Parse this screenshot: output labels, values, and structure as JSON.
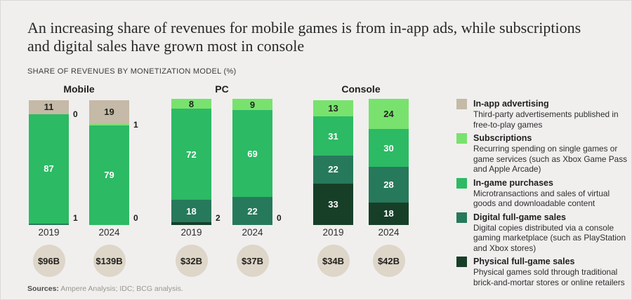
{
  "header": {
    "title": "An increasing share of revenues for mobile games is from in-app ads, while subscriptions and digital sales have grown most in console",
    "subtitle": "SHARE OF REVENUES BY MONETIZATION MODEL (%)"
  },
  "chart_data": {
    "type": "bar",
    "stacked": true,
    "unit": "%",
    "ylim": [
      0,
      100
    ],
    "legend_position": "right",
    "segment_keys": [
      "in_app_advertising",
      "subscriptions",
      "in_game_purchases",
      "digital_full_game_sales",
      "physical_full_game_sales"
    ],
    "segment_colors": {
      "in_app_advertising": "#c5b9a7",
      "subscriptions": "#79e26e",
      "in_game_purchases": "#2cba64",
      "digital_full_game_sales": "#27795c",
      "physical_full_game_sales": "#173f28"
    },
    "label_text_colors": {
      "in_app_advertising": "#20251e",
      "subscriptions": "#20251e",
      "in_game_purchases": "#ffffff",
      "digital_full_game_sales": "#ffffff",
      "physical_full_game_sales": "#ffffff"
    },
    "revenue_circle_color": "#ddd6c9",
    "groups": [
      {
        "label": "Mobile",
        "bars": [
          {
            "year": "2019",
            "total": "$96B",
            "segments": [
              {
                "key": "in_app_advertising",
                "value": 11,
                "label": "inside"
              },
              {
                "key": "subscriptions",
                "value": 0,
                "label": "outside"
              },
              {
                "key": "in_game_purchases",
                "value": 87,
                "label": "inside"
              },
              {
                "key": "digital_full_game_sales",
                "value": 1,
                "label": "outside"
              },
              {
                "key": "physical_full_game_sales",
                "value": 0,
                "label": "none"
              }
            ]
          },
          {
            "year": "2024",
            "total": "$139B",
            "segments": [
              {
                "key": "in_app_advertising",
                "value": 19,
                "label": "inside"
              },
              {
                "key": "subscriptions",
                "value": 1,
                "label": "outside"
              },
              {
                "key": "in_game_purchases",
                "value": 79,
                "label": "inside"
              },
              {
                "key": "digital_full_game_sales",
                "value": 0,
                "label": "outside"
              },
              {
                "key": "physical_full_game_sales",
                "value": 0,
                "label": "none"
              }
            ]
          }
        ]
      },
      {
        "label": "PC",
        "bars": [
          {
            "year": "2019",
            "total": "$32B",
            "segments": [
              {
                "key": "in_app_advertising",
                "value": 0,
                "label": "none"
              },
              {
                "key": "subscriptions",
                "value": 8,
                "label": "inside"
              },
              {
                "key": "in_game_purchases",
                "value": 72,
                "label": "inside"
              },
              {
                "key": "digital_full_game_sales",
                "value": 18,
                "label": "inside"
              },
              {
                "key": "physical_full_game_sales",
                "value": 2,
                "label": "outside"
              }
            ]
          },
          {
            "year": "2024",
            "total": "$37B",
            "segments": [
              {
                "key": "in_app_advertising",
                "value": 0,
                "label": "none"
              },
              {
                "key": "subscriptions",
                "value": 9,
                "label": "inside"
              },
              {
                "key": "in_game_purchases",
                "value": 69,
                "label": "inside"
              },
              {
                "key": "digital_full_game_sales",
                "value": 22,
                "label": "inside"
              },
              {
                "key": "physical_full_game_sales",
                "value": 0,
                "label": "outside"
              }
            ]
          }
        ]
      },
      {
        "label": "Console",
        "bars": [
          {
            "year": "2019",
            "total": "$34B",
            "segments": [
              {
                "key": "in_app_advertising",
                "value": 0,
                "label": "none"
              },
              {
                "key": "subscriptions",
                "value": 13,
                "label": "inside"
              },
              {
                "key": "in_game_purchases",
                "value": 31,
                "label": "inside"
              },
              {
                "key": "digital_full_game_sales",
                "value": 22,
                "label": "inside"
              },
              {
                "key": "physical_full_game_sales",
                "value": 33,
                "label": "inside"
              }
            ]
          },
          {
            "year": "2024",
            "total": "$42B",
            "segments": [
              {
                "key": "in_app_advertising",
                "value": 0,
                "label": "none"
              },
              {
                "key": "subscriptions",
                "value": 24,
                "label": "inside"
              },
              {
                "key": "in_game_purchases",
                "value": 30,
                "label": "inside"
              },
              {
                "key": "digital_full_game_sales",
                "value": 28,
                "label": "inside"
              },
              {
                "key": "physical_full_game_sales",
                "value": 18,
                "label": "inside"
              }
            ]
          }
        ]
      }
    ]
  },
  "legend": {
    "items": [
      {
        "key": "in_app_advertising",
        "title": "In-app advertising",
        "description": "Third-party advertisements published in free-to-play games"
      },
      {
        "key": "subscriptions",
        "title": "Subscriptions",
        "description": "Recurring spending on single games or game services (such as Xbox Game Pass and Apple Arcade)"
      },
      {
        "key": "in_game_purchases",
        "title": "In-game purchases",
        "description": "Microtransactions and sales of virtual goods and downloadable content"
      },
      {
        "key": "digital_full_game_sales",
        "title": "Digital full-game sales",
        "description": "Digital copies distributed via a console gaming marketplace (such as PlayStation and Xbox stores)"
      },
      {
        "key": "physical_full_game_sales",
        "title": "Physical full-game sales",
        "description": "Physical games sold through traditional brick-and-mortar stores or online retailers"
      }
    ]
  },
  "sources": {
    "label": "Sources:",
    "text": "Ampere Analysis; IDC; BCG analysis."
  }
}
